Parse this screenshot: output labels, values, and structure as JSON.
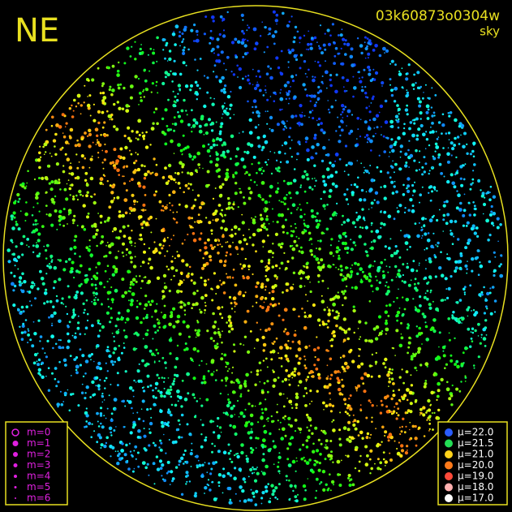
{
  "header": {
    "direction": "NE",
    "image_id": "03k60873o0304w",
    "image_type": "sky"
  },
  "magnitude_legend": {
    "color": "#e020e0",
    "items": [
      "m=0",
      "m=1",
      "m=2",
      "m=3",
      "m=4",
      "m=5",
      "m=6"
    ]
  },
  "brightness_legend": {
    "items": [
      {
        "label": "μ=22.0",
        "color": "#2a5cff"
      },
      {
        "label": "μ=21.5",
        "color": "#22dd55"
      },
      {
        "label": "μ=21.0",
        "color": "#ffd21a"
      },
      {
        "label": "μ=20.0",
        "color": "#ff7a1a"
      },
      {
        "label": "μ=19.0",
        "color": "#ff4a3a"
      },
      {
        "label": "μ=18.0",
        "color": "#ffb0b0"
      },
      {
        "label": "μ=17.0",
        "color": "#ffffff"
      }
    ]
  }
}
